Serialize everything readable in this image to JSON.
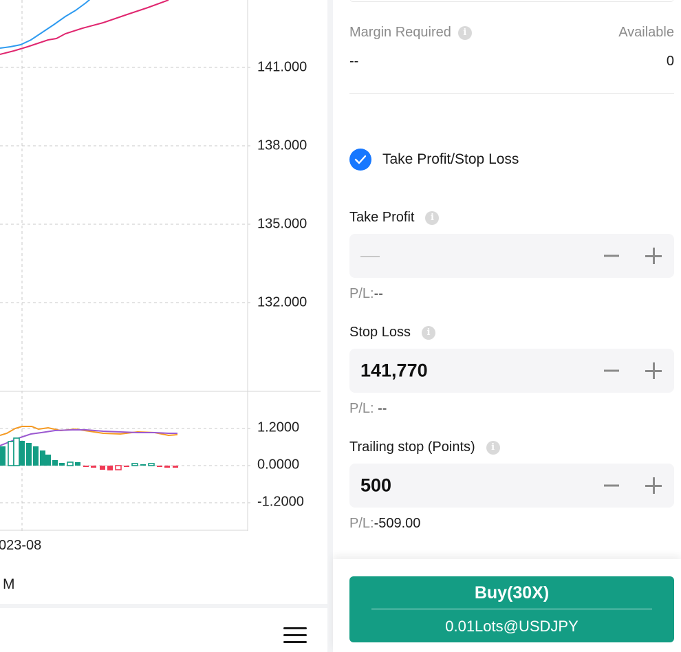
{
  "chart": {
    "price_axis": [
      "141.000",
      "138.000",
      "135.000",
      "132.000"
    ],
    "indicator_axis": [
      "1.2000",
      "0.0000",
      "-1.2000"
    ],
    "date_label": "023-08",
    "period_label": "M",
    "colors": {
      "ma_blue": "#2f9bf0",
      "ma_pink": "#e0266f",
      "dif_orange": "#f59a23",
      "dea_purple": "#9b59d0",
      "up": "#149d84",
      "down": "#f03a55"
    }
  },
  "order": {
    "margin_required_label": "Margin Required",
    "margin_required_value": "--",
    "available_label": "Available",
    "available_value": "0",
    "tpsl_label": "Take Profit/Stop Loss",
    "tpsl_checked": true,
    "take_profit": {
      "label": "Take Profit",
      "value": "",
      "pl_label": "P/L:",
      "pl_value": "--"
    },
    "stop_loss": {
      "label": "Stop Loss",
      "value": "141,770",
      "pl_label": "P/L:",
      "pl_value": " --"
    },
    "trailing_stop": {
      "label": "Trailing stop (Points)",
      "value": "500",
      "pl_label": "P/L:",
      "pl_value": "-509.00"
    },
    "buy_button": {
      "title": "Buy(30X)",
      "subtitle": "0.01Lots@USDJPY"
    }
  }
}
